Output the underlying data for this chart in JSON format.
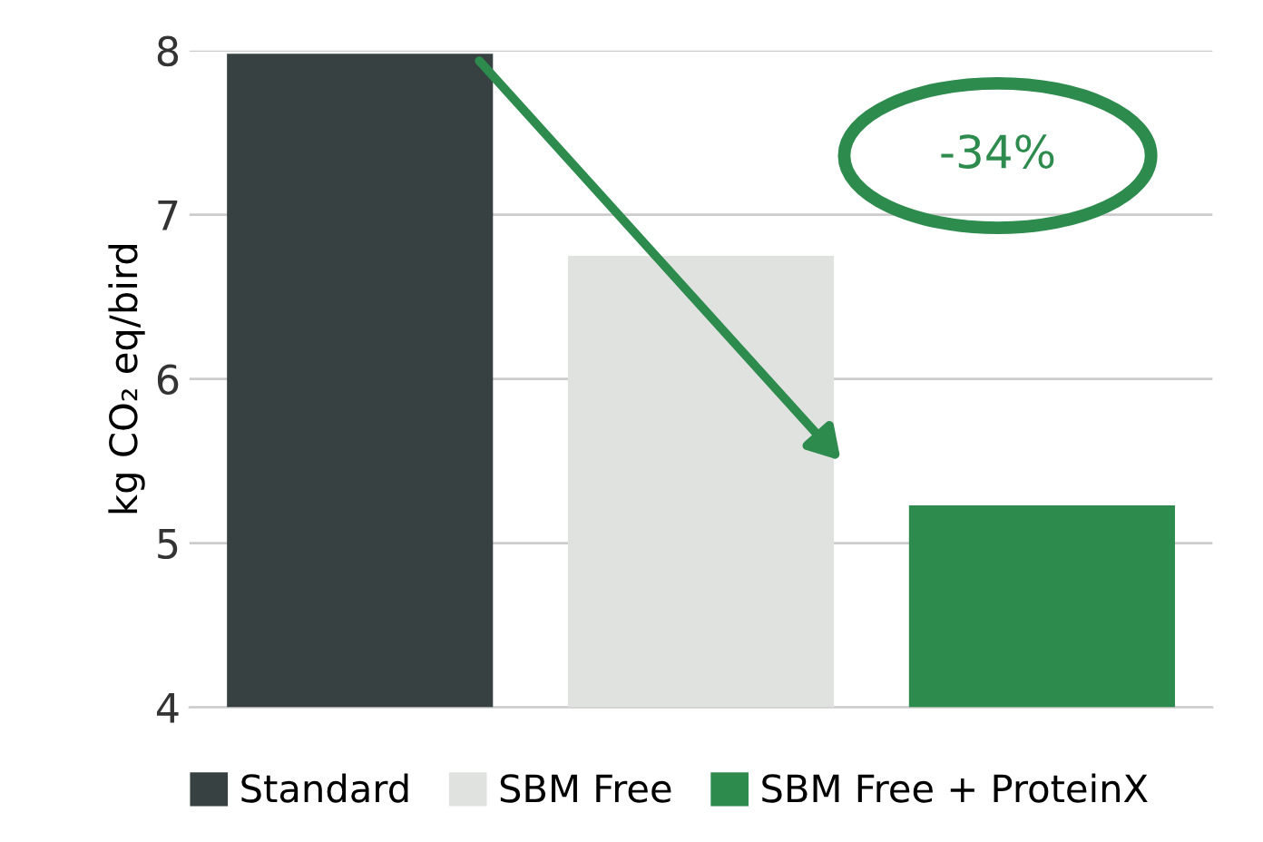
{
  "chart_data": {
    "type": "bar",
    "ylabel": "kg CO₂ eq/bird",
    "categories": [
      null,
      null,
      null
    ],
    "series": [
      {
        "name": "Standard",
        "color": "#374142",
        "values": [
          7.98,
          null,
          null
        ]
      },
      {
        "name": "SBM Free",
        "color": "#dfe2df",
        "values": [
          null,
          6.75,
          null
        ]
      },
      {
        "name": "SBM Free + ProteinX",
        "color": "#2e8b4e",
        "values": [
          null,
          null,
          5.23
        ]
      }
    ],
    "ylim": [
      4,
      8
    ],
    "yticks": [
      4,
      5,
      6,
      7,
      8
    ],
    "grid": "y",
    "legend": "bottom",
    "annotations": [
      "-34%"
    ]
  }
}
